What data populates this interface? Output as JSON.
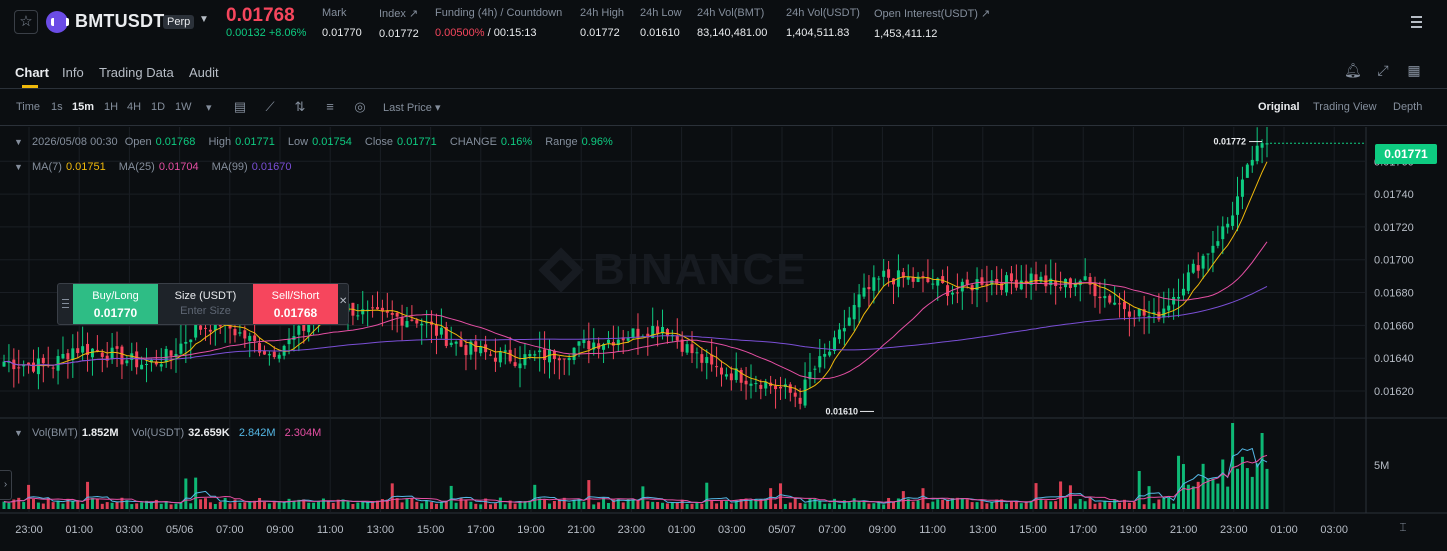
{
  "header": {
    "symbol": "BMTUSDT",
    "badge": "Perp",
    "last_price": "0.01768",
    "change": "0.00132 +8.06%",
    "stats": [
      {
        "label": "Mark",
        "value": "0.01770"
      },
      {
        "label": "Index ↗",
        "value": "0.01772"
      },
      {
        "label": "Funding (4h) / Countdown",
        "value_rate": "0.00500%",
        "value_sep": " / ",
        "value_time": "00:15:13"
      },
      {
        "label": "24h High",
        "value": "0.01772"
      },
      {
        "label": "24h Low",
        "value": "0.01610"
      },
      {
        "label": "24h Vol(BMT)",
        "value": "83,140,481.00"
      },
      {
        "label": "24h Vol(USDT)",
        "value": "1,404,511.83"
      },
      {
        "label": "Open Interest(USDT) ↗",
        "value": "1,453,411.12"
      }
    ],
    "icons": {
      "star": "star-icon",
      "coin": "bmt-logo-icon",
      "menu": "hamburger-menu-icon"
    }
  },
  "tabs": [
    "Chart",
    "Info",
    "Trading Data",
    "Audit"
  ],
  "tab_tools": {
    "bell": "🔔︎",
    "expand": "⤢",
    "layout": "▦"
  },
  "toolbar": {
    "intervals": [
      "Time",
      "1s",
      "15m",
      "1H",
      "4H",
      "1D",
      "1W"
    ],
    "active_interval": "15m",
    "dropdown_caret": "▾",
    "price_type": "Last Price ▾",
    "views": [
      "Original",
      "Trading View",
      "Depth"
    ],
    "active_view": "Original",
    "icons": [
      "indicator-calendar-icon",
      "line-chart-icon",
      "compare-icon",
      "settings-sliders-icon",
      "list-settings-icon",
      "target-icon"
    ]
  },
  "legend": {
    "ohlc": [
      {
        "k": "2026/05/08 00:30",
        "v": ""
      },
      {
        "k": "Open",
        "v": "0.01768"
      },
      {
        "k": "High",
        "v": "0.01771"
      },
      {
        "k": "Low",
        "v": "0.01754"
      },
      {
        "k": "Close",
        "v": "0.01771"
      },
      {
        "k": "CHANGE",
        "v": "0.16%"
      },
      {
        "k": "Range",
        "v": "0.96%"
      }
    ],
    "ma": [
      {
        "k": "MA(7)",
        "v": "0.01751"
      },
      {
        "k": "MA(25)",
        "v": "0.01704"
      },
      {
        "k": "MA(99)",
        "v": "0.01670"
      }
    ],
    "vol": [
      {
        "k": "Vol(BMT)",
        "v": "1.852M"
      },
      {
        "k": "Vol(USDT)",
        "v": "32.659K"
      },
      {
        "k": "",
        "v": "2.842M"
      },
      {
        "k": "",
        "v": "2.304M"
      }
    ]
  },
  "watermark": "BINANCE",
  "order_widget": {
    "buy_label": "Buy/Long",
    "buy_price": "0.01770",
    "size_label": "Size (USDT)",
    "size_placeholder": "Enter Size",
    "sell_label": "Sell/Short",
    "sell_price": "0.01768",
    "close": "✕"
  },
  "price_axis": {
    "current_tag": "0.01771",
    "ticks": [
      "0.01760",
      "0.01740",
      "0.01720",
      "0.01700",
      "0.01680",
      "0.01660",
      "0.01640",
      "0.01620"
    ],
    "vol_tick": "5M"
  },
  "annotations": {
    "high": "0.01772",
    "low": "0.01610"
  },
  "time_axis": [
    "23:00",
    "01:00",
    "03:00",
    "05/06",
    "07:00",
    "09:00",
    "11:00",
    "13:00",
    "15:00",
    "17:00",
    "19:00",
    "21:00",
    "23:00",
    "01:00",
    "03:00",
    "05/07",
    "07:00",
    "09:00",
    "11:00",
    "13:00",
    "15:00",
    "17:00",
    "19:00",
    "21:00",
    "23:00",
    "01:00",
    "03:00"
  ],
  "chart_data": {
    "type": "candlestick",
    "price_range": [
      0.01606,
      0.01776
    ],
    "closes_anchor": [
      [
        0,
        0.01638
      ],
      [
        5,
        0.01636
      ],
      [
        10,
        0.01636
      ],
      [
        14,
        0.01646
      ],
      [
        19,
        0.01645
      ],
      [
        24,
        0.0164
      ],
      [
        29,
        0.01636
      ],
      [
        34,
        0.01642
      ],
      [
        39,
        0.01658
      ],
      [
        44,
        0.01662
      ],
      [
        49,
        0.01653
      ],
      [
        54,
        0.01643
      ],
      [
        59,
        0.01652
      ],
      [
        64,
        0.01668
      ],
      [
        69,
        0.01672
      ],
      [
        74,
        0.01666
      ],
      [
        79,
        0.01665
      ],
      [
        84,
        0.01664
      ],
      [
        89,
        0.01654
      ],
      [
        94,
        0.01646
      ],
      [
        99,
        0.01642
      ],
      [
        104,
        0.0164
      ],
      [
        109,
        0.01641
      ],
      [
        114,
        0.01644
      ],
      [
        119,
        0.01649
      ],
      [
        124,
        0.01652
      ],
      [
        129,
        0.01656
      ],
      [
        134,
        0.0166
      ],
      [
        139,
        0.01646
      ],
      [
        144,
        0.01634
      ],
      [
        149,
        0.0163
      ],
      [
        154,
        0.01626
      ],
      [
        159,
        0.0162
      ],
      [
        162,
        0.01616
      ],
      [
        164,
        0.0163
      ],
      [
        169,
        0.01648
      ],
      [
        174,
        0.01676
      ],
      [
        179,
        0.0169
      ],
      [
        184,
        0.01688
      ],
      [
        189,
        0.01686
      ],
      [
        194,
        0.0168
      ],
      [
        199,
        0.01688
      ],
      [
        204,
        0.01686
      ],
      [
        209,
        0.0169
      ],
      [
        214,
        0.01683
      ],
      [
        219,
        0.01688
      ],
      [
        224,
        0.01678
      ],
      [
        229,
        0.0167
      ],
      [
        234,
        0.01664
      ],
      [
        239,
        0.01682
      ],
      [
        244,
        0.01702
      ],
      [
        249,
        0.01722
      ],
      [
        252,
        0.01745
      ],
      [
        254,
        0.01762
      ],
      [
        257,
        0.01771
      ]
    ],
    "ma7_color": "#f0b90b",
    "ma25_color": "#e54fa3",
    "ma99_color": "#7a4fd6",
    "up_color": "#0ecb81",
    "down_color": "#f6465d",
    "volume_scale_label": "5M"
  }
}
